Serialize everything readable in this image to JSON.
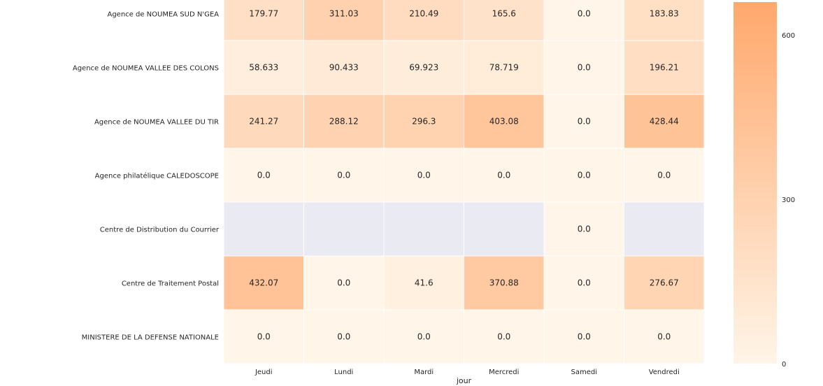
{
  "chart_data": {
    "type": "heatmap",
    "xlabel": "jour",
    "ylabel": "",
    "x_categories": [
      "Jeudi",
      "Lundi",
      "Mardi",
      "Mercredi",
      "Samedi",
      "Vendredi"
    ],
    "y_categories": [
      "Agence de NOUMEA SUD N'GEA",
      "Agence de NOUMEA VALLEE DES COLONS",
      "Agence de NOUMEA VALLEE DU TIR",
      "Agence philatélique CALEDOSCOPE",
      "Centre de Distribution du Courrier",
      "Centre de Traitement Postal",
      "MINISTERE DE LA DEFENSE NATIONALE"
    ],
    "values": [
      [
        179.77,
        311.03,
        210.49,
        165.6,
        0.0,
        183.83
      ],
      [
        58.633,
        90.433,
        69.923,
        78.719,
        0.0,
        196.21
      ],
      [
        241.27,
        288.12,
        296.3,
        403.08,
        0.0,
        428.44
      ],
      [
        0.0,
        0.0,
        0.0,
        0.0,
        0.0,
        0.0
      ],
      [
        null,
        null,
        null,
        null,
        0.0,
        null
      ],
      [
        432.07,
        0.0,
        41.6,
        370.88,
        0.0,
        276.67
      ],
      [
        0.0,
        0.0,
        0.0,
        0.0,
        0.0,
        0.0
      ]
    ],
    "value_labels": [
      [
        "179.77",
        "311.03",
        "210.49",
        "165.6",
        "0.0",
        "183.83"
      ],
      [
        "58.633",
        "90.433",
        "69.923",
        "78.719",
        "0.0",
        "196.21"
      ],
      [
        "241.27",
        "288.12",
        "296.3",
        "403.08",
        "0.0",
        "428.44"
      ],
      [
        "0.0",
        "0.0",
        "0.0",
        "0.0",
        "0.0",
        "0.0"
      ],
      [
        "",
        "",
        "",
        "",
        "0.0",
        ""
      ],
      [
        "432.07",
        "0.0",
        "41.6",
        "370.88",
        "0.0",
        "276.67"
      ],
      [
        "0.0",
        "0.0",
        "0.0",
        "0.0",
        "0.0",
        "0.0"
      ]
    ],
    "colorbar": {
      "min": 0,
      "max": 660,
      "ticks": [
        0,
        300,
        600
      ],
      "tick_labels": [
        "0",
        "300",
        "600"
      ],
      "color_low": "#fff5e8",
      "color_high": "#ffa86c"
    },
    "missing_color": "#eaeaf2",
    "grid": false
  }
}
